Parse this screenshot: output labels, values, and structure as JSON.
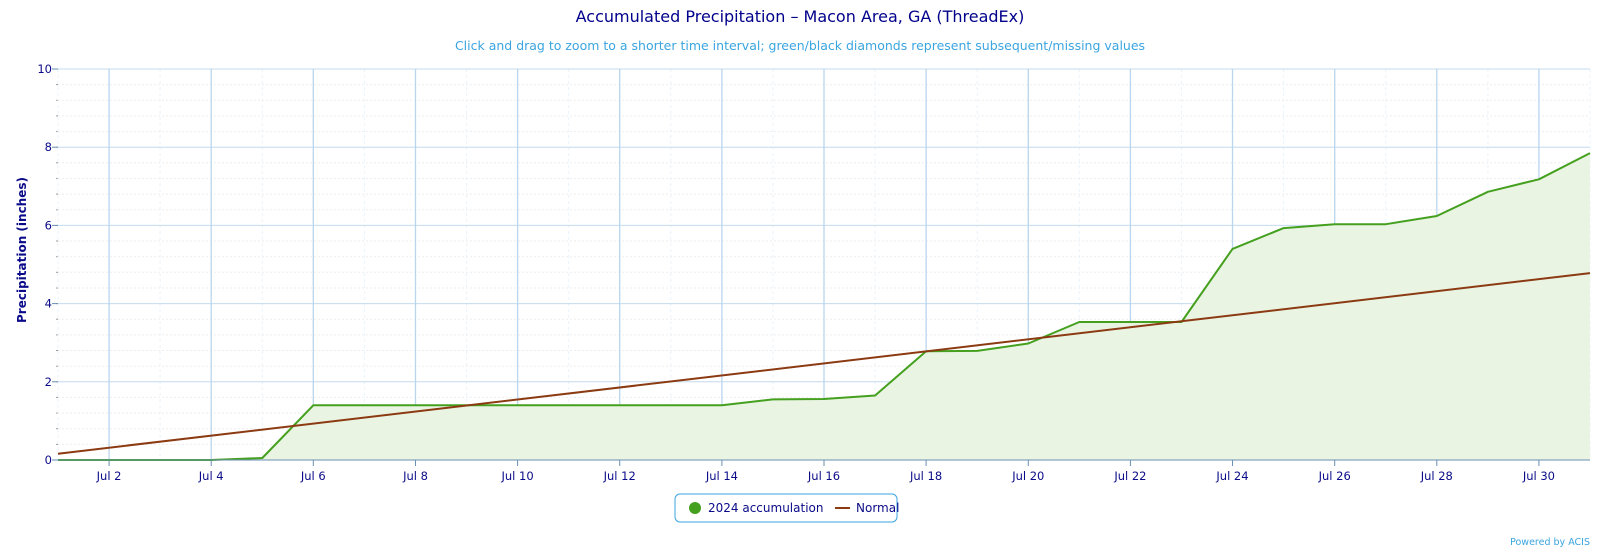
{
  "chart_data": {
    "type": "line",
    "title": "Accumulated Precipitation – Macon Area, GA (ThreadEx)",
    "subtitle": "Click and drag to zoom to a shorter time interval; green/black diamonds represent subsequent/missing values",
    "ylabel": "Precipitation (inches)",
    "xlabel": "",
    "ylim": [
      0,
      10
    ],
    "yticks": [
      0,
      2,
      4,
      6,
      8,
      10
    ],
    "xlim": [
      1,
      31
    ],
    "x_tick_days": [
      2,
      4,
      6,
      8,
      10,
      12,
      14,
      16,
      18,
      20,
      22,
      24,
      26,
      28,
      30
    ],
    "x_tick_labels": [
      "Jul 2",
      "Jul 4",
      "Jul 6",
      "Jul 8",
      "Jul 10",
      "Jul 12",
      "Jul 14",
      "Jul 16",
      "Jul 18",
      "Jul 20",
      "Jul 22",
      "Jul 24",
      "Jul 26",
      "Jul 28",
      "Jul 30"
    ],
    "grid": true,
    "legend_position": "bottom-center",
    "series": [
      {
        "name": "2024 accumulation",
        "color": "#44a01e",
        "fill": "#e9f4e3",
        "area": true,
        "x": [
          1,
          2,
          3,
          4,
          5,
          6,
          7,
          8,
          9,
          10,
          11,
          12,
          13,
          14,
          15,
          16,
          17,
          18,
          19,
          20,
          21,
          22,
          23,
          24,
          25,
          26,
          27,
          28,
          29,
          30,
          31
        ],
        "values": [
          0.0,
          0.0,
          0.0,
          0.0,
          0.05,
          1.4,
          1.4,
          1.4,
          1.4,
          1.4,
          1.4,
          1.4,
          1.4,
          1.4,
          1.55,
          1.56,
          1.65,
          2.78,
          2.79,
          2.98,
          3.53,
          3.53,
          3.53,
          5.4,
          5.93,
          6.03,
          6.03,
          6.24,
          6.86,
          7.18,
          7.85
        ]
      },
      {
        "name": "Normal",
        "color": "#8b3a12",
        "area": false,
        "x": [
          1,
          31
        ],
        "values": [
          0.16,
          4.78
        ]
      }
    ]
  },
  "credit": "Powered by ACIS"
}
